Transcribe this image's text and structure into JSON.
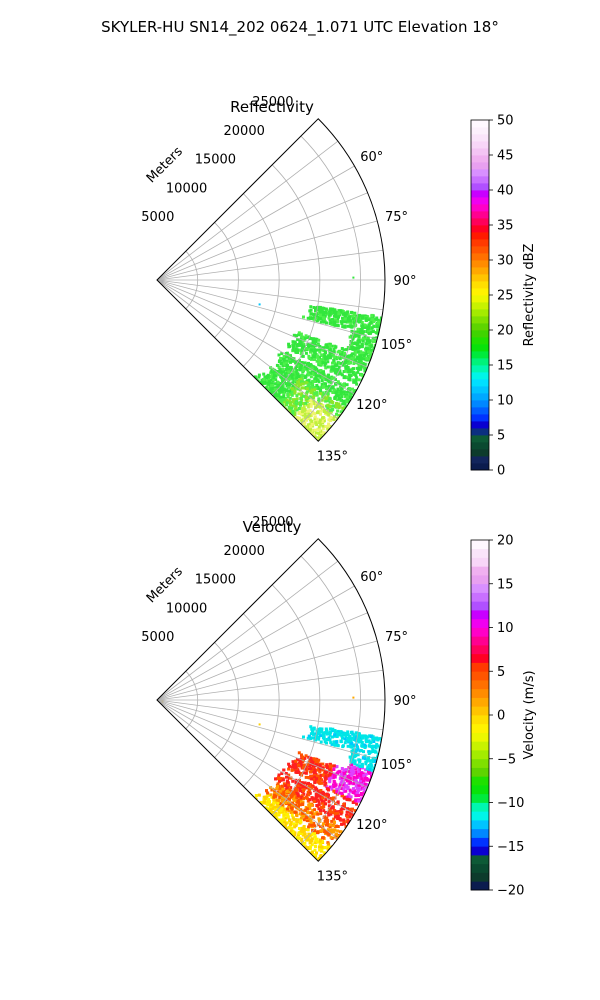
{
  "figure_title": "SKYLER-HU  SN14_202  0624_1.071 UTC Elevation 18°",
  "chart_data": [
    {
      "type": "polar",
      "title": "Reflectivity",
      "range_axis_label": "Meters",
      "range_ticks": [
        5000,
        10000,
        15000,
        20000,
        25000
      ],
      "range_tick_labels": [
        "5000",
        "10000",
        "15000",
        "20000",
        "25000"
      ],
      "rmax": 28000,
      "azimuth_range_deg": [
        45,
        135
      ],
      "azimuth_ticks_deg": [
        60,
        75,
        90,
        105,
        120,
        135
      ],
      "azimuth_tick_labels": [
        "60°",
        "75°",
        "90°",
        "105°",
        "120°",
        "135°"
      ],
      "grid": true,
      "colorbar": {
        "label": "Reflectivity dBZ",
        "vmin": 0,
        "vmax": 50,
        "ticks": [
          0,
          5,
          10,
          15,
          20,
          25,
          30,
          35,
          40,
          45,
          50
        ],
        "tick_labels": [
          "0",
          "5",
          "10",
          "15",
          "20",
          "25",
          "30",
          "35",
          "40",
          "45",
          "50"
        ],
        "colors": [
          "#0b1c4e",
          "#12255c",
          "#0d3b2c",
          "#0a4a30",
          "#0d5a36",
          "#0b2f80",
          "#0a00d0",
          "#0033ff",
          "#005eff",
          "#0087ff",
          "#00a8ff",
          "#00c4ff",
          "#00dfff",
          "#00f5e8",
          "#00f7b0",
          "#00f27a",
          "#00ea3c",
          "#08e20a",
          "#1fe000",
          "#3fd400",
          "#5ed400",
          "#7fe000",
          "#a4eb00",
          "#c8f200",
          "#ecf700",
          "#fff200",
          "#ffdf00",
          "#ffc400",
          "#ffa800",
          "#ff8c00",
          "#ff7000",
          "#ff5500",
          "#ff3a00",
          "#ff1a00",
          "#ff0022",
          "#ff005a",
          "#ff0090",
          "#ff00c8",
          "#f000f0",
          "#c800ff",
          "#b050ff",
          "#c870ff",
          "#d890ff",
          "#e8a0f0",
          "#f0b0f0",
          "#f4c4f4",
          "#f8d6f8",
          "#fae4fa",
          "#fcf0fc",
          "#fff8ff"
        ]
      },
      "echo_dominant_colors": [
        "#33e63d",
        "#4df04a",
        "#8ce628",
        "#bff03c",
        "#eef56e"
      ]
    },
    {
      "type": "polar",
      "title": "Velocity",
      "range_axis_label": "Meters",
      "range_ticks": [
        5000,
        10000,
        15000,
        20000,
        25000
      ],
      "range_tick_labels": [
        "5000",
        "10000",
        "15000",
        "20000",
        "25000"
      ],
      "rmax": 28000,
      "azimuth_range_deg": [
        45,
        135
      ],
      "azimuth_ticks_deg": [
        60,
        75,
        90,
        105,
        120,
        135
      ],
      "azimuth_tick_labels": [
        "60°",
        "75°",
        "90°",
        "105°",
        "120°",
        "135°"
      ],
      "grid": true,
      "colorbar": {
        "label": "Velocity (m/s)",
        "vmin": -20,
        "vmax": 20,
        "ticks": [
          -20,
          -15,
          -10,
          -5,
          0,
          5,
          10,
          15,
          20
        ],
        "tick_labels": [
          "−20",
          "−15",
          "−10",
          "−5",
          "0",
          "5",
          "10",
          "15",
          "20"
        ],
        "colors": [
          "#0b1c4e",
          "#0d3b2c",
          "#0a4a30",
          "#0d5a36",
          "#0a00d0",
          "#0033ff",
          "#0087ff",
          "#00c4ff",
          "#00f5e8",
          "#00f7b0",
          "#00ea3c",
          "#08e20a",
          "#1fe000",
          "#5ed400",
          "#7fe000",
          "#a4eb00",
          "#c8f200",
          "#ecf700",
          "#fff200",
          "#ffdf00",
          "#ffc400",
          "#ffa800",
          "#ff8c00",
          "#ff7000",
          "#ff5500",
          "#ff3a00",
          "#ff0022",
          "#ff005a",
          "#ff0090",
          "#ff00c8",
          "#f000f0",
          "#c800ff",
          "#b050ff",
          "#c870ff",
          "#d890ff",
          "#e8a0f0",
          "#f0b0f0",
          "#f8d6f8",
          "#fae4fa",
          "#fff8ff"
        ]
      },
      "echo_dominant_colors": [
        "#ff2020",
        "#ff5500",
        "#ffa000",
        "#ffd200",
        "#fff200",
        "#e040ff",
        "#00e6e6"
      ]
    }
  ]
}
